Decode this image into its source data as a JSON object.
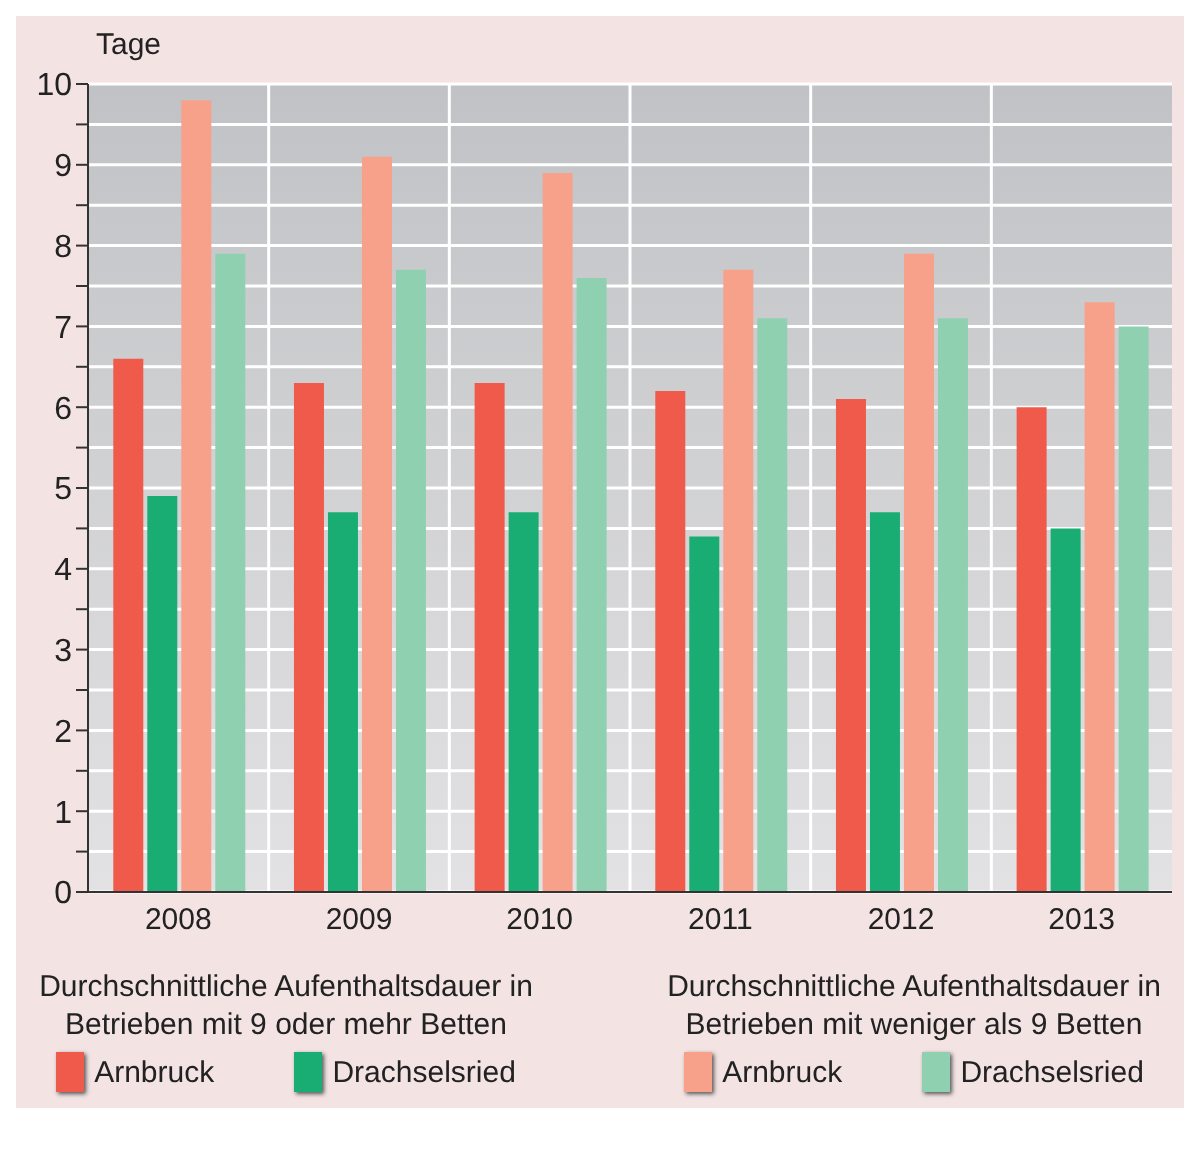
{
  "chart_data": {
    "type": "bar",
    "ylabel": "Tage",
    "categories": [
      "2008",
      "2009",
      "2010",
      "2011",
      "2012",
      "2013"
    ],
    "series": [
      {
        "name": "Arnbruck",
        "color": "#ef5a4a",
        "values": [
          6.6,
          6.3,
          6.3,
          6.2,
          6.1,
          6.0
        ]
      },
      {
        "name": "Drachselsried",
        "color": "#1aad73",
        "values": [
          4.9,
          4.7,
          4.7,
          4.4,
          4.7,
          4.5
        ]
      },
      {
        "name": "Arnbruck",
        "color": "#f7a08a",
        "values": [
          9.8,
          9.1,
          8.9,
          7.7,
          7.9,
          7.3
        ]
      },
      {
        "name": "Drachselsried",
        "color": "#8fd0b0",
        "values": [
          7.9,
          7.7,
          7.6,
          7.1,
          7.1,
          7.0
        ]
      }
    ],
    "ylim": [
      0,
      10
    ],
    "yticks": [
      0,
      {
        "value": 0.5,
        "label": null
      },
      1,
      {
        "value": 1.5,
        "label": null
      },
      2,
      {
        "value": 2.5,
        "label": null
      },
      3,
      {
        "value": 3.5,
        "label": null
      },
      4,
      {
        "value": 4.5,
        "label": null
      },
      5,
      {
        "value": 5.5,
        "label": null
      },
      6,
      {
        "value": 6.5,
        "label": null
      },
      7,
      {
        "value": 7.5,
        "label": null
      },
      8,
      {
        "value": 8.5,
        "label": null
      },
      9,
      {
        "value": 9.5,
        "label": null
      },
      10
    ],
    "grid": true,
    "legend": "bottom",
    "annotations": [
      "Durchschnittliche Aufenthaltsdauer in Betrieben mit 9 oder mehr Betten",
      "Durchschnittliche Aufenthaltsdauer in Betrieben mit weniger als 9 Betten"
    ]
  }
}
